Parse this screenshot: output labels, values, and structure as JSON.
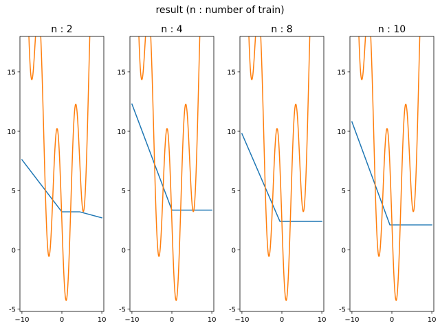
{
  "suptitle": "result (n : number of train)",
  "colors": {
    "model": "#1f77b4",
    "target": "#ff7f0e",
    "axes": "#000000"
  },
  "chart_data": [
    {
      "type": "line",
      "title": "n : 2",
      "xlabel": "",
      "ylabel": "",
      "xlim": [
        -10.5,
        10.5
      ],
      "ylim": [
        -5.2,
        18.0
      ],
      "xticks": [
        -10,
        0,
        10
      ],
      "yticks": [
        -5,
        0,
        5,
        10,
        15
      ],
      "grid": false,
      "series": [
        {
          "role": "model",
          "color": "#1f77b4",
          "x": [
            -10,
            0,
            4.5,
            10
          ],
          "y": [
            7.6,
            3.2,
            3.2,
            2.7
          ]
        },
        {
          "role": "target",
          "color": "#ff7f0e",
          "function": "target"
        }
      ]
    },
    {
      "type": "line",
      "title": "n : 4",
      "xlabel": "",
      "ylabel": "",
      "xlim": [
        -10.5,
        10.5
      ],
      "ylim": [
        -5.2,
        18.0
      ],
      "xticks": [
        -10,
        0,
        10
      ],
      "yticks": [
        -5,
        0,
        5,
        10,
        15
      ],
      "grid": false,
      "series": [
        {
          "role": "model",
          "color": "#1f77b4",
          "x": [
            -10,
            0,
            10
          ],
          "y": [
            12.3,
            3.35,
            3.35
          ]
        },
        {
          "role": "target",
          "color": "#ff7f0e",
          "function": "target"
        }
      ]
    },
    {
      "type": "line",
      "title": "n : 8",
      "xlabel": "",
      "ylabel": "",
      "xlim": [
        -10.5,
        10.5
      ],
      "ylim": [
        -5.2,
        18.0
      ],
      "xticks": [
        -10,
        0,
        10
      ],
      "yticks": [
        -5,
        0,
        5,
        10,
        15
      ],
      "grid": false,
      "series": [
        {
          "role": "model",
          "color": "#1f77b4",
          "x": [
            -10,
            -0.5,
            10
          ],
          "y": [
            9.8,
            2.4,
            2.4
          ]
        },
        {
          "role": "target",
          "color": "#ff7f0e",
          "function": "target"
        }
      ]
    },
    {
      "type": "line",
      "title": "n : 10",
      "xlabel": "",
      "ylabel": "",
      "xlim": [
        -10.5,
        10.5
      ],
      "ylim": [
        -5.2,
        18.0
      ],
      "xticks": [
        -10,
        0,
        10
      ],
      "yticks": [
        -5,
        0,
        5,
        10,
        15
      ],
      "grid": false,
      "series": [
        {
          "role": "model",
          "color": "#1f77b4",
          "x": [
            -10,
            -0.5,
            10
          ],
          "y": [
            10.8,
            2.1,
            2.1
          ]
        },
        {
          "role": "target",
          "color": "#ff7f0e",
          "function": "target"
        }
      ]
    }
  ]
}
